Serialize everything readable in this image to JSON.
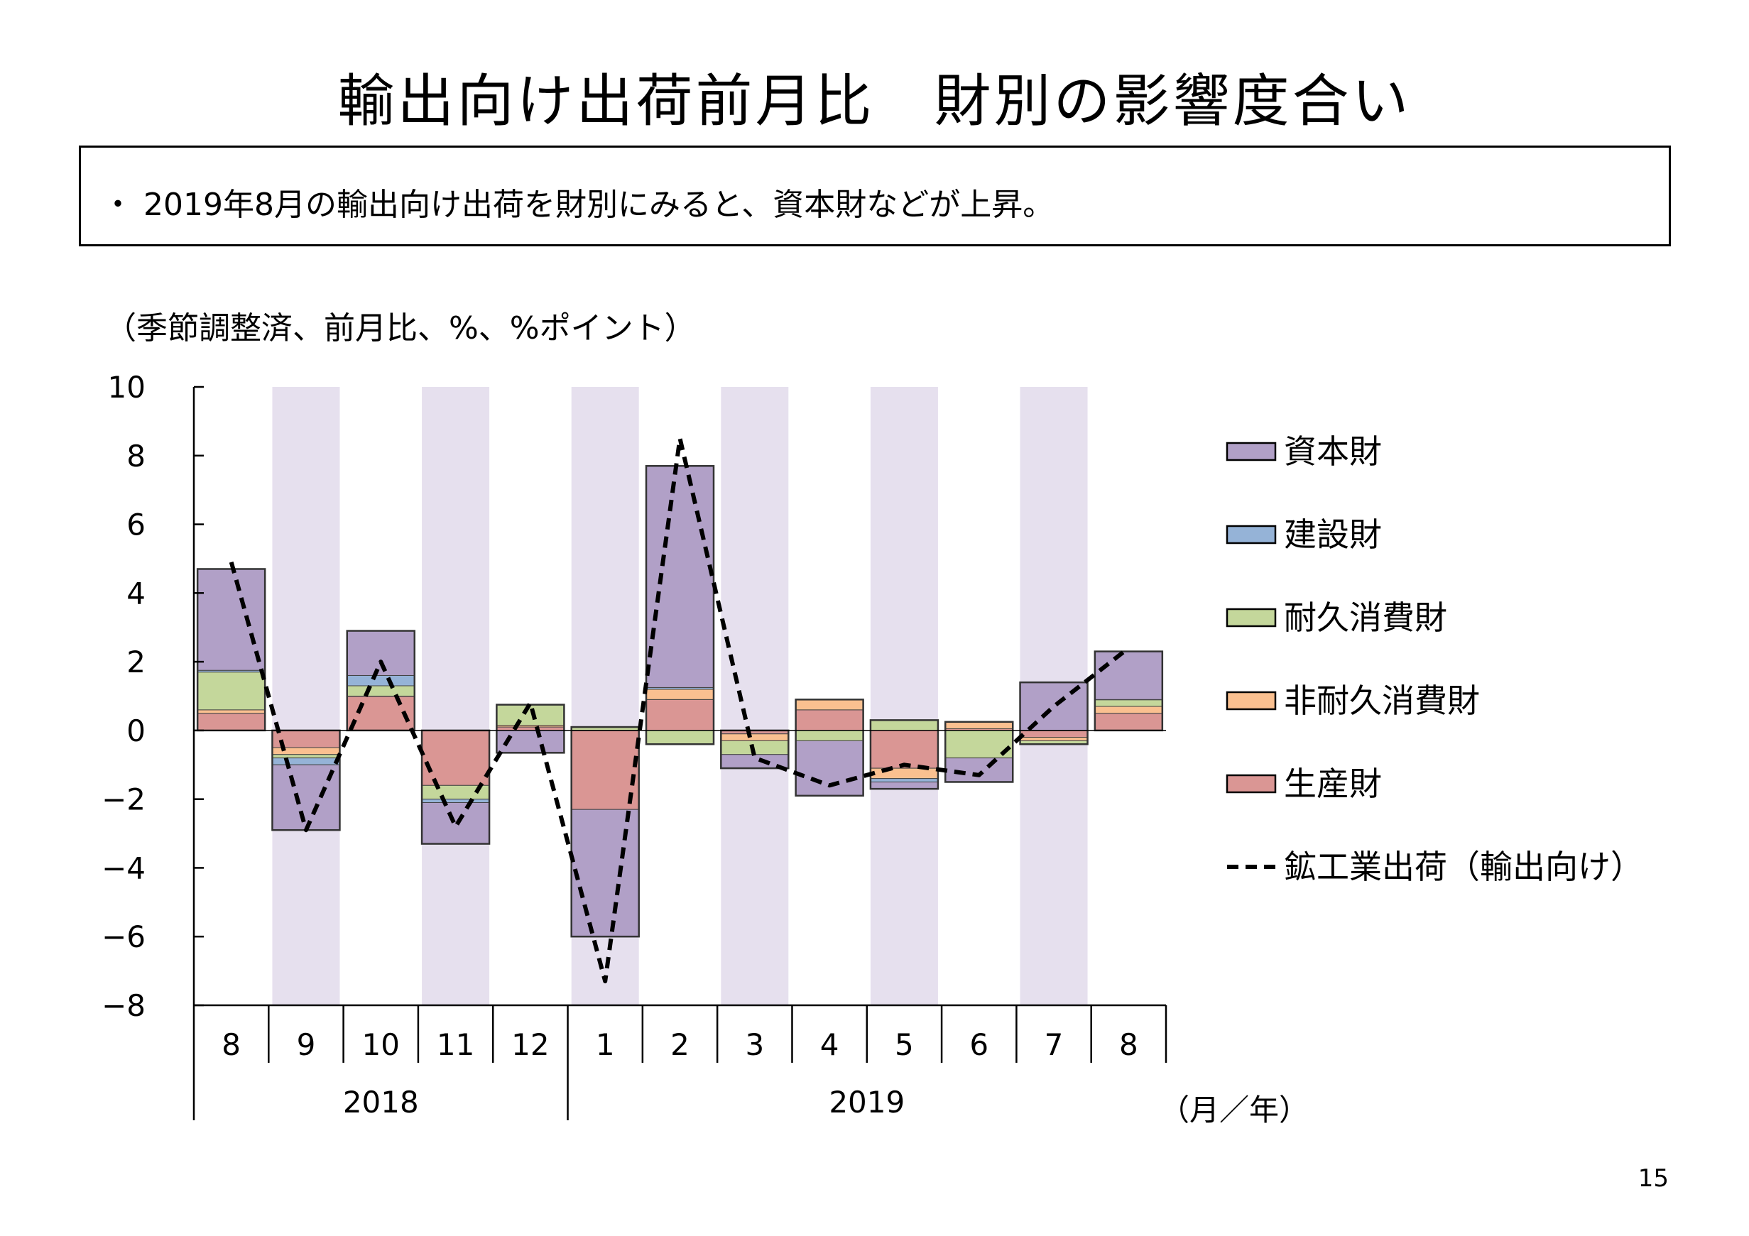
{
  "page": {
    "title": "輸出向け出荷前月比　財別の影響度合い",
    "summary": "・ 2019年8月の輸出向け出荷を財別にみると、資本財などが上昇。",
    "unit_note": "（季節調整済、前月比、%、%ポイント）",
    "page_number": "15"
  },
  "chart_data": {
    "type": "bar",
    "stacked": true,
    "categories": [
      "8",
      "9",
      "10",
      "11",
      "12",
      "1",
      "2",
      "3",
      "4",
      "5",
      "6",
      "7",
      "8"
    ],
    "year_labels": [
      {
        "label": "2018",
        "from": 0,
        "to": 4
      },
      {
        "label": "2019",
        "from": 5,
        "to": 12
      }
    ],
    "x_unit_label": "（月／年）",
    "ylim": [
      -8,
      10
    ],
    "yticks": [
      10,
      8,
      6,
      4,
      2,
      0,
      -2,
      -4,
      -6,
      -8
    ],
    "shaded_categories": [
      1,
      3,
      5,
      7,
      9,
      11
    ],
    "shade_color": "#e6e0ee",
    "series": [
      {
        "name": "生産財",
        "color": "#da9694",
        "values": [
          0.5,
          -0.5,
          1.0,
          -1.6,
          0.1,
          -2.3,
          0.9,
          -0.1,
          0.6,
          -1.1,
          0.05,
          -0.2,
          0.5
        ]
      },
      {
        "name": "非耐久消費財",
        "color": "#fac090",
        "values": [
          0.1,
          -0.2,
          0.0,
          0.0,
          0.05,
          0.0,
          0.3,
          -0.2,
          0.3,
          -0.3,
          0.2,
          -0.1,
          0.2
        ]
      },
      {
        "name": "耐久消費財",
        "color": "#c4d79b",
        "values": [
          1.1,
          -0.1,
          0.3,
          -0.4,
          0.6,
          0.1,
          -0.4,
          -0.4,
          -0.3,
          0.3,
          -0.8,
          -0.1,
          0.2
        ]
      },
      {
        "name": "建設財",
        "color": "#95b3d7",
        "values": [
          0.05,
          -0.2,
          0.3,
          -0.1,
          0.0,
          0.0,
          0.05,
          0.0,
          0.0,
          -0.1,
          0.0,
          0.0,
          0.0
        ]
      },
      {
        "name": "資本財",
        "color": "#b1a0c7",
        "values": [
          2.95,
          -1.9,
          1.3,
          -1.2,
          -0.65,
          -3.7,
          6.45,
          -0.4,
          -1.6,
          -0.2,
          -0.7,
          1.4,
          1.4
        ]
      }
    ],
    "line_series": {
      "name": "鉱工業出荷（輸出向け）",
      "values": [
        4.9,
        -2.9,
        2.0,
        -2.8,
        0.8,
        -7.3,
        8.5,
        -0.8,
        -1.6,
        -1.0,
        -1.3,
        0.7,
        2.4
      ]
    },
    "legend_position": "right",
    "grid": false
  }
}
